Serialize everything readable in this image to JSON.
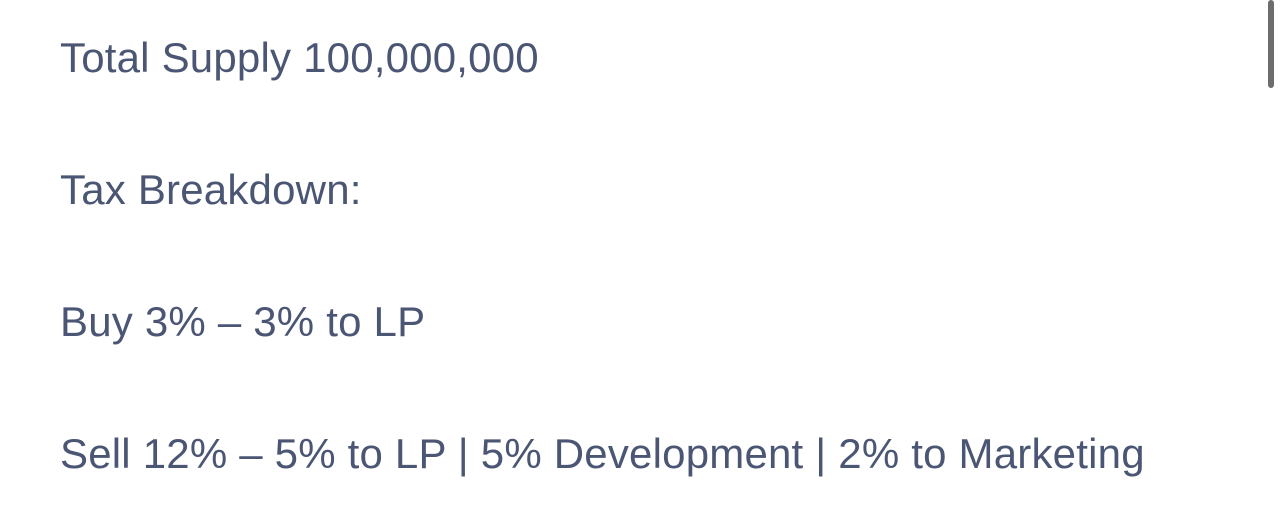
{
  "tokenomics": {
    "total_supply": "Total Supply 100,000,000",
    "tax_heading": "Tax Breakdown:",
    "buy_tax": "Buy 3% – 3% to LP",
    "sell_tax": "Sell 12% – 5% to LP | 5% Development | 2% to Marketing"
  },
  "colors": {
    "text": "#4a5673",
    "background": "#ffffff",
    "scrollbar": "#6d6d6d"
  }
}
